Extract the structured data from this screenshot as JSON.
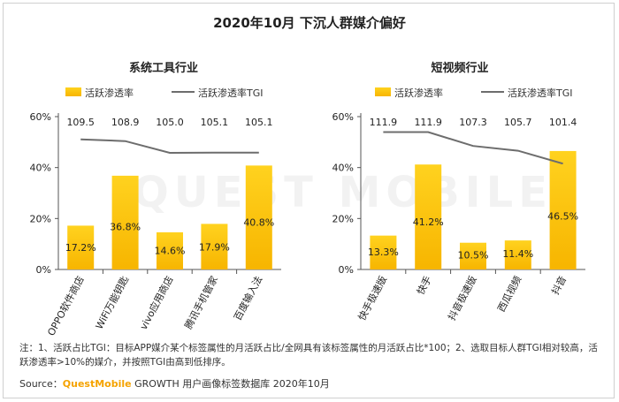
{
  "title": "2020年10月 下沉人群媒介偏好",
  "colors": {
    "bar_top": "#ffd21f",
    "bar_bottom": "#f7b500",
    "line": "#6d6d6d",
    "axis": "#555555"
  },
  "legend": {
    "bar_label": "活跃渗透率",
    "line_label": "活跃渗透率TGI"
  },
  "watermark": "QUEST MOBILE",
  "chart_data": [
    {
      "type": "bar",
      "title": "系统工具行业",
      "categories": [
        "OPPO软件商店",
        "WiFi万能钥匙",
        "vivo应用商店",
        "腾讯手机管家",
        "百度输入法"
      ],
      "series": [
        {
          "name": "活跃渗透率",
          "values": [
            17.2,
            36.8,
            14.6,
            17.9,
            40.8
          ],
          "value_labels": [
            "17.2%",
            "36.8%",
            "14.6%",
            "17.9%",
            "40.8%"
          ]
        },
        {
          "name": "活跃渗透率TGI",
          "type": "line",
          "values": [
            109.5,
            108.9,
            105.0,
            105.1,
            105.1
          ],
          "value_labels": [
            "109.5",
            "108.9",
            "105.0",
            "105.1",
            "105.1"
          ]
        }
      ],
      "ylim": [
        0,
        60
      ],
      "yticks": [
        "0%",
        "20%",
        "40%",
        "60%"
      ],
      "grid": false,
      "legend_position": "top"
    },
    {
      "type": "bar",
      "title": "短视频行业",
      "categories": [
        "快手极速版",
        "快手",
        "抖音极速版",
        "西瓜视频",
        "抖音"
      ],
      "series": [
        {
          "name": "活跃渗透率",
          "values": [
            13.3,
            41.2,
            10.5,
            11.4,
            46.5
          ],
          "value_labels": [
            "13.3%",
            "41.2%",
            "10.5%",
            "11.4%",
            "46.5%"
          ]
        },
        {
          "name": "活跃渗透率TGI",
          "type": "line",
          "values": [
            111.9,
            111.9,
            107.3,
            105.7,
            101.4
          ],
          "value_labels": [
            "111.9",
            "111.9",
            "107.3",
            "105.7",
            "101.4"
          ]
        }
      ],
      "ylim": [
        0,
        60
      ],
      "yticks": [
        "0%",
        "20%",
        "40%",
        "60%"
      ],
      "grid": false,
      "legend_position": "top"
    }
  ],
  "note": "注：1、活跃占比TGI：目标APP媒介某个标签属性的月活跃占比/全网具有该标签属性的月活跃占比*100；2、选取目标人群TGI相对较高，活跃渗透率>10%的媒介，并按照TGI由高到低排序。",
  "source": {
    "prefix": "Source：",
    "brand": "QuestMobile",
    "rest": "GROWTH 用户画像标签数据库 2020年10月"
  }
}
